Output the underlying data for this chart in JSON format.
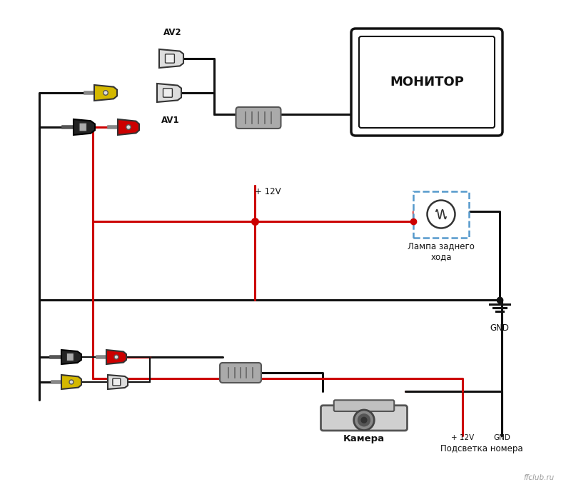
{
  "bg_color": "#ffffff",
  "fig_width": 8.0,
  "fig_height": 6.82,
  "monitor_label": "МОНИТОР",
  "lamp_label": "Лампа заднего\nхода",
  "camera_label": "Камера",
  "gnd_label": "GND",
  "plus12v_label": "+ 12V",
  "av1_label": "AV1",
  "av2_label": "AV2",
  "podvetka_label": "Подсветка номера",
  "watermark": "ffclub.ru",
  "black_color": "#111111",
  "red_color": "#cc0000",
  "yellow_color": "#d4b800",
  "gray_color": "#888888",
  "wire_lw": 2.2,
  "connector_gray": "#aaaaaa",
  "dpi": 100
}
